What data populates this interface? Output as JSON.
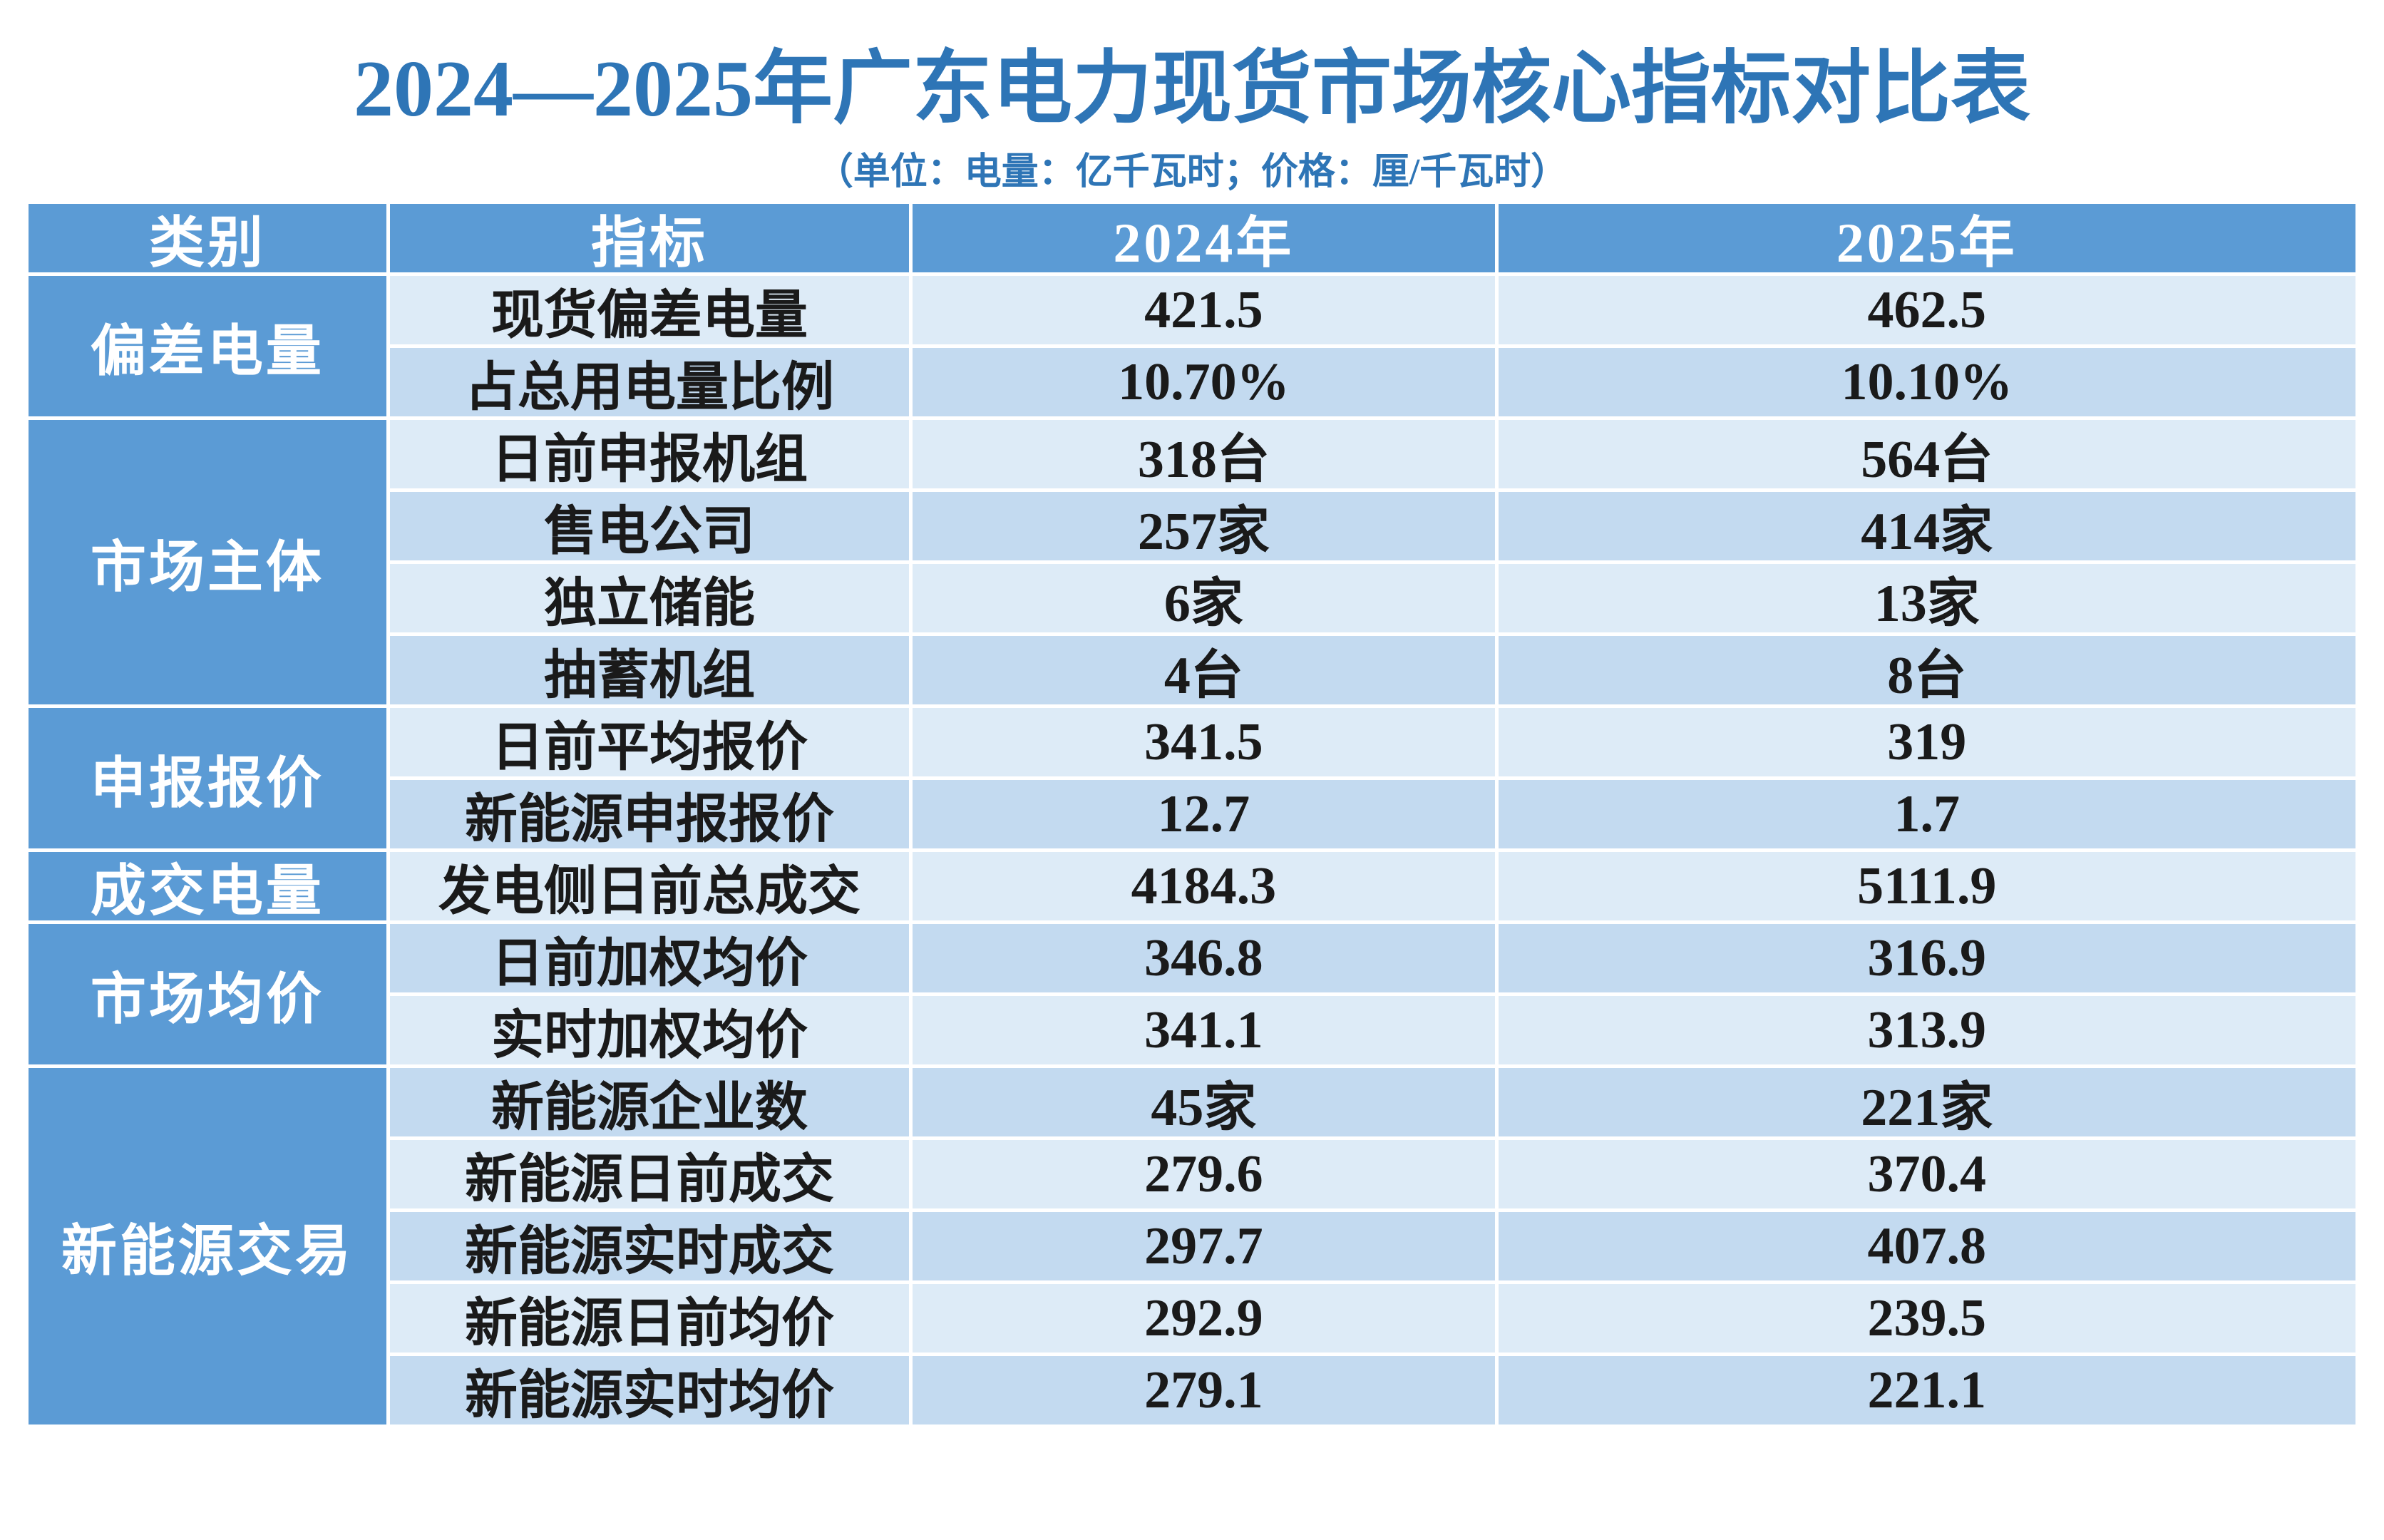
{
  "title": "2024—2025年广东电力现货市场核心指标对比表",
  "subtitle": "（单位：电量：亿千瓦时；价格：厘/千瓦时）",
  "colors": {
    "title_text": "#2E75B6",
    "header_bg": "#5B9BD5",
    "row_light": "#DDEBF7",
    "row_medium": "#C3DAF0"
  },
  "table": {
    "headers": [
      "类别",
      "指标",
      "2024年",
      "2025年"
    ],
    "groups": [
      {
        "category": "偏差电量",
        "rows": [
          [
            "现货偏差电量",
            "421.5",
            "462.5"
          ],
          [
            "占总用电量比例",
            "10.70%",
            "10.10%"
          ]
        ]
      },
      {
        "category": "市场主体",
        "rows": [
          [
            "日前申报机组",
            "318台",
            "564台"
          ],
          [
            "售电公司",
            "257家",
            "414家"
          ],
          [
            "独立储能",
            "6家",
            "13家"
          ],
          [
            "抽蓄机组",
            "4台",
            "8台"
          ]
        ]
      },
      {
        "category": "申报报价",
        "rows": [
          [
            "日前平均报价",
            "341.5",
            "319"
          ],
          [
            "新能源申报报价",
            "12.7",
            "1.7"
          ]
        ]
      },
      {
        "category": "成交电量",
        "rows": [
          [
            "发电侧日前总成交",
            "4184.3",
            "5111.9"
          ]
        ]
      },
      {
        "category": "市场均价",
        "rows": [
          [
            "日前加权均价",
            "346.8",
            "316.9"
          ],
          [
            "实时加权均价",
            "341.1",
            "313.9"
          ]
        ]
      },
      {
        "category": "新能源交易",
        "rows": [
          [
            "新能源企业数",
            "45家",
            "221家"
          ],
          [
            "新能源日前成交",
            "279.6",
            "370.4"
          ],
          [
            "新能源实时成交",
            "297.7",
            "407.8"
          ],
          [
            "新能源日前均价",
            "292.9",
            "239.5"
          ],
          [
            "新能源实时均价",
            "279.1",
            "221.1"
          ]
        ]
      }
    ]
  },
  "chart_data": {
    "type": "table",
    "title": "2024—2025年广东电力现货市场核心指标对比表",
    "unit_note": "（单位：电量：亿千瓦时；价格：厘/千瓦时）",
    "columns": [
      "类别",
      "指标",
      "2024年",
      "2025年"
    ],
    "rows": [
      [
        "偏差电量",
        "现货偏差电量",
        "421.5",
        "462.5"
      ],
      [
        "偏差电量",
        "占总用电量比例",
        "10.70%",
        "10.10%"
      ],
      [
        "市场主体",
        "日前申报机组",
        "318台",
        "564台"
      ],
      [
        "市场主体",
        "售电公司",
        "257家",
        "414家"
      ],
      [
        "市场主体",
        "独立储能",
        "6家",
        "13家"
      ],
      [
        "市场主体",
        "抽蓄机组",
        "4台",
        "8台"
      ],
      [
        "申报报价",
        "日前平均报价",
        "341.5",
        "319"
      ],
      [
        "申报报价",
        "新能源申报报价",
        "12.7",
        "1.7"
      ],
      [
        "成交电量",
        "发电侧日前总成交",
        "4184.3",
        "5111.9"
      ],
      [
        "市场均价",
        "日前加权均价",
        "346.8",
        "316.9"
      ],
      [
        "市场均价",
        "实时加权均价",
        "341.1",
        "313.9"
      ],
      [
        "新能源交易",
        "新能源企业数",
        "45家",
        "221家"
      ],
      [
        "新能源交易",
        "新能源日前成交",
        "279.6",
        "370.4"
      ],
      [
        "新能源交易",
        "新能源实时成交",
        "297.7",
        "407.8"
      ],
      [
        "新能源交易",
        "新能源日前均价",
        "292.9",
        "239.5"
      ],
      [
        "新能源交易",
        "新能源实时均价",
        "279.1",
        "221.1"
      ]
    ]
  }
}
